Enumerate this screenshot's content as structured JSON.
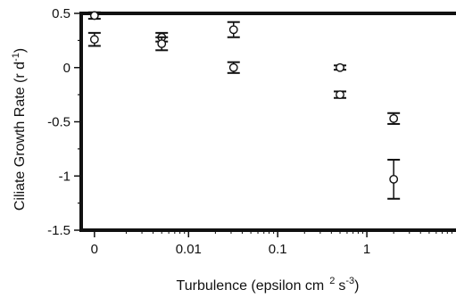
{
  "chart_data": {
    "type": "scatter",
    "title": "",
    "ylabel": "Ciliate Growth Rate (r d",
    "ylabel_sup": "-1",
    "ylabel_end": ")",
    "xlabel": "Turbulence (epsilon cm",
    "xlabel_sup1": "2",
    "xlabel_mid": "s",
    "xlabel_sup2": "-3",
    "xlabel_end": ")",
    "x_scale": "log",
    "xlim": [
      0.000625,
      10
    ],
    "ylim": [
      -1.5,
      0.5
    ],
    "x_ticks": [
      {
        "value": 0.00088,
        "label": "0"
      },
      {
        "value": 0.01,
        "label": "0.01"
      },
      {
        "value": 0.1,
        "label": "0.1"
      },
      {
        "value": 1,
        "label": "1"
      }
    ],
    "y_ticks": [
      {
        "value": 0.5,
        "label": "0.5"
      },
      {
        "value": 0,
        "label": "0"
      },
      {
        "value": -0.5,
        "label": "-0.5"
      },
      {
        "value": -1,
        "label": "-1"
      },
      {
        "value": -1.5,
        "label": "-1.5"
      }
    ],
    "marker": "open-circle",
    "points": [
      {
        "x": 0.00088,
        "y": 0.48,
        "err": 0.03
      },
      {
        "x": 0.00088,
        "y": 0.26,
        "err": 0.06
      },
      {
        "x": 0.005,
        "y": 0.28,
        "err": 0.04
      },
      {
        "x": 0.005,
        "y": 0.22,
        "err": 0.06
      },
      {
        "x": 0.032,
        "y": 0.35,
        "err": 0.07
      },
      {
        "x": 0.032,
        "y": 0.0,
        "err": 0.05
      },
      {
        "x": 0.5,
        "y": 0.0,
        "err": 0.02
      },
      {
        "x": 0.5,
        "y": -0.25,
        "err": 0.03
      },
      {
        "x": 2.0,
        "y": -0.47,
        "err": 0.05
      },
      {
        "x": 2.0,
        "y": -1.03,
        "err": 0.18
      }
    ],
    "colors": {
      "ink": "#111111",
      "background": "#ffffff"
    }
  }
}
